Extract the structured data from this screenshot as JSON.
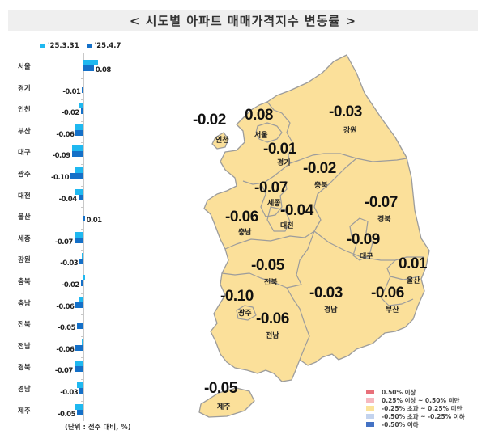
{
  "title": "< 시도별 아파트 매매가격지수 변동률 >",
  "bar_legend": [
    {
      "label": "'25.3.31",
      "color": "#1fb8f0"
    },
    {
      "label": "'25.4.7",
      "color": "#1470c8"
    }
  ],
  "unit_note": "(단위 : 전주 대비, %)",
  "map_legend": [
    {
      "label": "0.50% 이상",
      "color": "#e8707a"
    },
    {
      "label": "0.25% 이상 ~ 0.50% 미만",
      "color": "#f6b8bf"
    },
    {
      "label": "-0.25% 초과 ~ 0.25% 미만",
      "color": "#fbe39a"
    },
    {
      "label": "-0.50% 초과 ~ -0.25% 이하",
      "color": "#c3d3ee"
    },
    {
      "label": "-0.50% 이하",
      "color": "#4472c4"
    }
  ],
  "map_regions": [
    {
      "name": "인천",
      "value": "-0.02"
    },
    {
      "name": "서울",
      "value": "0.08"
    },
    {
      "name": "경기",
      "value": "-0.01"
    },
    {
      "name": "강원",
      "value": "-0.03"
    },
    {
      "name": "충북",
      "value": "-0.02"
    },
    {
      "name": "세종",
      "value": "-0.07"
    },
    {
      "name": "대전",
      "value": "-0.04"
    },
    {
      "name": "충남",
      "value": "-0.06"
    },
    {
      "name": "경북",
      "value": "-0.07"
    },
    {
      "name": "대구",
      "value": "-0.09"
    },
    {
      "name": "울산",
      "value": "0.01"
    },
    {
      "name": "전북",
      "value": "-0.05"
    },
    {
      "name": "광주",
      "value": "-0.10"
    },
    {
      "name": "전남",
      "value": "-0.06"
    },
    {
      "name": "경남",
      "value": "-0.03"
    },
    {
      "name": "부산",
      "value": "-0.06"
    },
    {
      "name": "제주",
      "value": "-0.05"
    }
  ],
  "chart_data": [
    {
      "type": "bar",
      "orientation": "horizontal",
      "title": "시도별 아파트 매매가격지수 변동률",
      "xlabel": "",
      "ylabel": "",
      "unit": "전주 대비, %",
      "categories": [
        "서울",
        "경기",
        "인천",
        "부산",
        "대구",
        "광주",
        "대전",
        "울산",
        "세종",
        "강원",
        "충북",
        "충남",
        "전북",
        "전남",
        "경북",
        "경남",
        "제주"
      ],
      "series": [
        {
          "name": "'25.3.31",
          "color": "#1fb8f0",
          "values": [
            0.11,
            0.0,
            -0.03,
            -0.07,
            -0.09,
            -0.06,
            -0.07,
            0.0,
            -0.07,
            -0.01,
            0.01,
            -0.03,
            0.0,
            -0.01,
            -0.07,
            -0.05,
            -0.06
          ]
        },
        {
          "name": "'25.4.7",
          "color": "#1470c8",
          "values": [
            0.08,
            -0.01,
            -0.02,
            -0.06,
            -0.09,
            -0.1,
            -0.04,
            0.01,
            -0.07,
            -0.03,
            -0.02,
            -0.06,
            -0.05,
            -0.06,
            -0.07,
            -0.03,
            -0.05
          ]
        }
      ],
      "data_labels": [
        "0.08",
        "-0.01",
        "-0.02",
        "-0.06",
        "-0.09",
        "-0.10",
        "-0.04",
        "0.01",
        "-0.07",
        "-0.03",
        "-0.02",
        "-0.06",
        "-0.05",
        "-0.06",
        "-0.07",
        "-0.03",
        "-0.05"
      ],
      "legend_position": "top",
      "grid": false
    },
    {
      "type": "choropleth-map",
      "title": "시도별 아파트 매매가격지수 변동률 (지도)",
      "regions": [
        "인천",
        "서울",
        "경기",
        "강원",
        "충북",
        "세종",
        "대전",
        "충남",
        "경북",
        "대구",
        "울산",
        "전북",
        "광주",
        "전남",
        "경남",
        "부산",
        "제주"
      ],
      "values": [
        -0.02,
        0.08,
        -0.01,
        -0.03,
        -0.02,
        -0.07,
        -0.04,
        -0.06,
        -0.07,
        -0.09,
        0.01,
        -0.05,
        -0.1,
        -0.06,
        -0.03,
        -0.06,
        -0.05
      ],
      "legend": [
        "0.50% 이상",
        "0.25% 이상 ~ 0.50% 미만",
        "-0.25% 초과 ~ 0.25% 미만",
        "-0.50% 초과 ~ -0.25% 이하",
        "-0.50% 이하"
      ]
    }
  ]
}
